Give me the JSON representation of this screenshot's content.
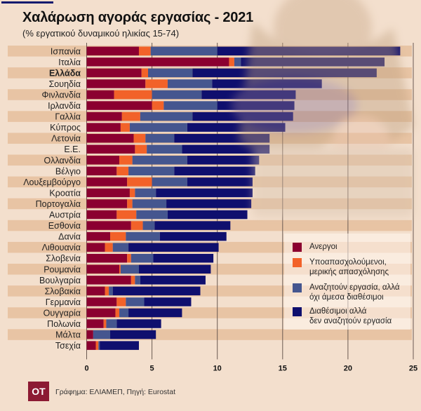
{
  "header": {
    "title": "Χαλάρωση αγοράς εργασίας - 2021",
    "subtitle": "(% εργατικού δυναμικού ηλικίας 15-74)"
  },
  "chart_data": {
    "type": "bar",
    "orientation": "horizontal",
    "stacked": true,
    "title": "Χαλάρωση αγοράς εργασίας - 2021",
    "subtitle": "(% εργατικού δυναμικού ηλικίας 15-74)",
    "xlabel": "",
    "ylabel": "",
    "xlim": [
      0,
      25
    ],
    "xticks": [
      "0",
      "5",
      "10",
      "15",
      "20",
      "25"
    ],
    "grid": "vertical",
    "legend_position": "bottom-right",
    "highlight_category": "Ελλάδα",
    "categories": [
      "Ισπανία",
      "Ιταλία",
      "Ελλάδα",
      "Σουηδία",
      "Φινλανδία",
      "Ιρλανδία",
      "Γαλλία",
      "Κύπρος",
      "Λετονία",
      "Ε.Ε.",
      "Ολλανδία",
      "Βέλγιο",
      "Λουξεμβούργο",
      "Κροατία",
      "Πορτογαλία",
      "Αυστρία",
      "Εσθονία",
      "Δανία",
      "Λιθουανία",
      "Σλοβενία",
      "Ρουμανία",
      "Βουλγαρία",
      "Σλοβακία",
      "Γερμανία",
      "Ουγγαρία",
      "Πολωνία",
      "Μάλτα",
      "Τσεχία"
    ],
    "series": [
      {
        "name": "Ανεργοι",
        "color": "#8b0030",
        "values": [
          4.0,
          10.9,
          4.2,
          4.5,
          2.1,
          5.0,
          2.7,
          2.6,
          3.6,
          3.7,
          2.5,
          2.3,
          3.1,
          3.3,
          3.1,
          2.3,
          3.4,
          1.8,
          1.4,
          3.1,
          2.5,
          3.4,
          1.4,
          2.3,
          2.2,
          1.3,
          0.5,
          0.7
        ]
      },
      {
        "name": "Υποαπασχολούμενοι, μερικής απασχόλησης",
        "color": "#f26229",
        "values": [
          0.9,
          0.4,
          0.5,
          1.7,
          2.9,
          0.9,
          1.4,
          0.7,
          0.9,
          0.9,
          1.0,
          0.9,
          1.9,
          0.4,
          0.4,
          1.5,
          0.9,
          1.2,
          0.6,
          0.3,
          0.1,
          0.3,
          0.3,
          0.7,
          0.3,
          0.2,
          0.0,
          0.2
        ]
      },
      {
        "name": "Αναζητούν εργασία, αλλά όχι άμεσα διαθέσιμοι",
        "color": "#45568f",
        "values": [
          5.1,
          0.5,
          3.4,
          3.4,
          3.8,
          4.1,
          4.0,
          4.4,
          2.2,
          2.7,
          4.2,
          3.5,
          2.7,
          1.6,
          2.6,
          2.4,
          0.9,
          2.6,
          1.2,
          1.7,
          1.4,
          0.4,
          0.3,
          1.4,
          0.7,
          0.8,
          1.3,
          0.1
        ]
      },
      {
        "name": "Διαθέσιμοι αλλά δεν αναζητούν εργασία",
        "color": "#0f0f6e",
        "values": [
          14.0,
          11.0,
          14.1,
          8.4,
          7.2,
          5.9,
          7.7,
          7.5,
          7.3,
          6.7,
          5.5,
          6.2,
          5.0,
          7.4,
          6.5,
          6.1,
          5.8,
          5.1,
          6.9,
          4.6,
          5.5,
          5.0,
          6.7,
          3.6,
          4.1,
          3.4,
          3.5,
          3.0
        ]
      }
    ]
  },
  "legend": {
    "items": [
      {
        "line1": "Ανεργοι",
        "line2": ""
      },
      {
        "line1": "Υποαπασχολούμενοι,",
        "line2": "μερικής απασχόλησης"
      },
      {
        "line1": "Αναζητούν εργασία, αλλά",
        "line2": "όχι άμεσα διαθέσιμοι"
      },
      {
        "line1": "Διαθέσιμοι αλλά",
        "line2": "δεν αναζητούν εργασία"
      }
    ]
  },
  "footer": {
    "logo": "OT",
    "source": "Γράφημα: ΕΛΙΑΜΕΠ, Πηγή: Eurostat"
  },
  "colors": {
    "background": "#f3dfcd",
    "band": "#e8c4a4",
    "accent_line": "#101a6e"
  }
}
